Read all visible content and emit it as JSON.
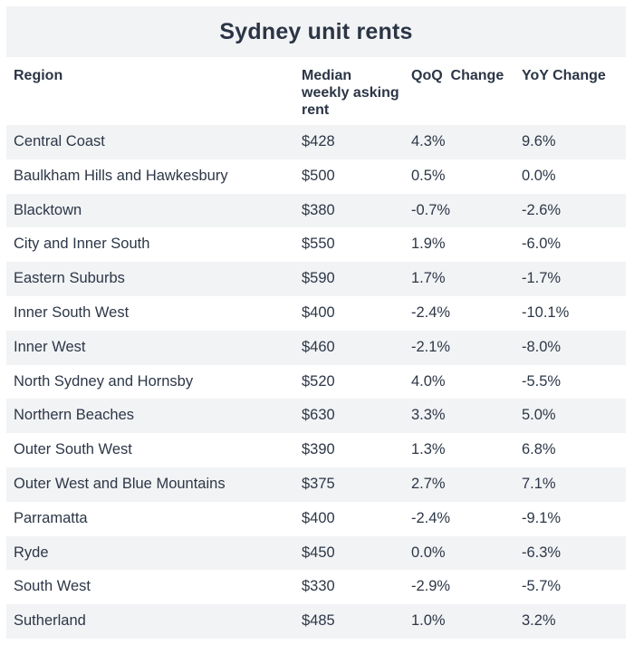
{
  "chart_data": {
    "type": "table",
    "title": "Sydney unit rents",
    "columns": [
      "Region",
      "Median weekly asking rent",
      "QoQ  Change",
      "YoY Change"
    ],
    "rows": [
      [
        "Central Coast",
        "$428",
        "4.3%",
        "9.6%"
      ],
      [
        "Baulkham Hills and Hawkesbury",
        "$500",
        "0.5%",
        "0.0%"
      ],
      [
        "Blacktown",
        "$380",
        "-0.7%",
        "-2.6%"
      ],
      [
        "City and Inner South",
        "$550",
        "1.9%",
        "-6.0%"
      ],
      [
        "Eastern Suburbs",
        "$590",
        "1.7%",
        "-1.7%"
      ],
      [
        "Inner South West",
        "$400",
        "-2.4%",
        "-10.1%"
      ],
      [
        "Inner West",
        "$460",
        "-2.1%",
        "-8.0%"
      ],
      [
        "North Sydney and Hornsby",
        "$520",
        "4.0%",
        "-5.5%"
      ],
      [
        "Northern Beaches",
        "$630",
        "3.3%",
        "5.0%"
      ],
      [
        "Outer South West",
        "$390",
        "1.3%",
        "6.8%"
      ],
      [
        "Outer West and Blue Mountains",
        "$375",
        "2.7%",
        "7.1%"
      ],
      [
        "Parramatta",
        "$400",
        "-2.4%",
        "-9.1%"
      ],
      [
        "Ryde",
        "$450",
        "0.0%",
        "-6.3%"
      ],
      [
        "South West",
        "$330",
        "-2.9%",
        "-5.7%"
      ],
      [
        "Sutherland",
        "$485",
        "1.0%",
        "3.2%"
      ]
    ],
    "colors": {
      "stripe": "#f2f3f5",
      "row_alt": "#ffffff",
      "text": "#2b3545"
    }
  }
}
